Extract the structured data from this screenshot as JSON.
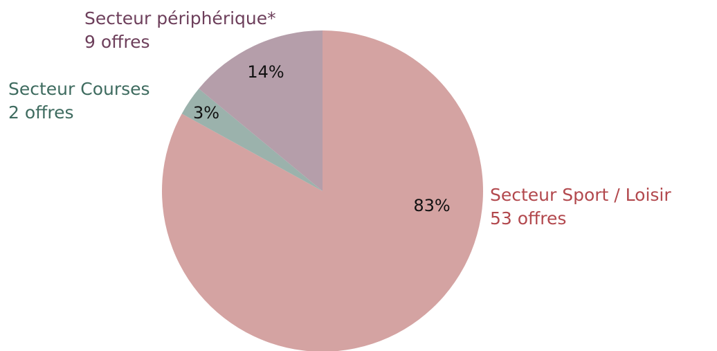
{
  "chart_data": {
    "type": "pie",
    "categories": [
      "Secteur Sport / Loisir",
      "Secteur Courses",
      "Secteur périphérique*"
    ],
    "values": [
      83,
      3,
      14
    ],
    "value_labels": [
      "83%",
      "3%",
      "14%"
    ],
    "count_labels": [
      "53 offres",
      "2 offres",
      "9 offres"
    ],
    "colors": [
      "#d4a3a2",
      "#9bb2ac",
      "#b59eaa"
    ],
    "label_colors": [
      "#b2484d",
      "#3e6b5f",
      "#6d3f5b"
    ]
  }
}
